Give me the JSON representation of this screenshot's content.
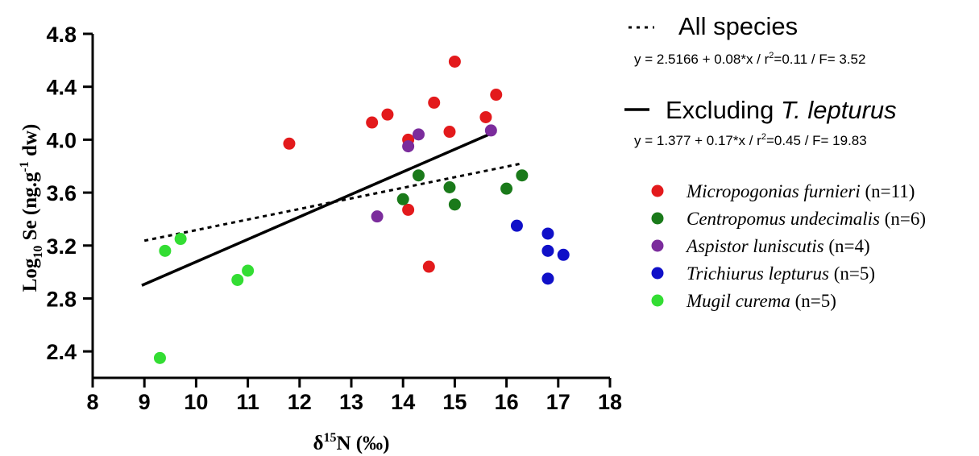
{
  "chart_data": {
    "type": "scatter",
    "xlabel": {
      "prefix": "δ",
      "sup": "15",
      "suffix": "N (‰)"
    },
    "ylabel": {
      "prefix": "Log",
      "sub": "10",
      "middle": " Se (ng.g",
      "sup": "-1",
      "suffix": " dw)"
    },
    "xlim": [
      8,
      18
    ],
    "ylim": [
      2.2,
      4.8
    ],
    "xticks": [
      8,
      9,
      10,
      11,
      12,
      13,
      14,
      15,
      16,
      17,
      18
    ],
    "yticks": [
      {
        "value": 2.4,
        "label": "2.4"
      },
      {
        "value": 2.8,
        "label": "2.8"
      },
      {
        "value": 3.2,
        "label": "3.2"
      },
      {
        "value": 3.6,
        "label": "3.6"
      },
      {
        "value": 4.0,
        "label": "4.0"
      },
      {
        "value": 4.4,
        "label": "4.4"
      },
      {
        "value": 4.8,
        "label": "4.8"
      }
    ],
    "series": [
      {
        "name": "Micropogonias furnieri",
        "n_label": " (n=11)",
        "color": "#e31a1c",
        "points": [
          [
            11.8,
            3.97
          ],
          [
            13.4,
            4.13
          ],
          [
            13.7,
            4.19
          ],
          [
            14.1,
            4.0
          ],
          [
            14.1,
            3.47
          ],
          [
            14.5,
            3.04
          ],
          [
            14.6,
            4.28
          ],
          [
            14.9,
            4.06
          ],
          [
            15.0,
            4.59
          ],
          [
            15.6,
            4.17
          ],
          [
            15.8,
            4.34
          ]
        ]
      },
      {
        "name": "Centropomus undecimalis",
        "n_label": " (n=6)",
        "color": "#1a7a1a",
        "points": [
          [
            14.0,
            3.55
          ],
          [
            14.3,
            3.73
          ],
          [
            14.9,
            3.64
          ],
          [
            15.0,
            3.51
          ],
          [
            16.0,
            3.63
          ],
          [
            16.3,
            3.73
          ]
        ]
      },
      {
        "name": "Aspistor luniscutis",
        "n_label": " (n=4)",
        "color": "#7b2c9c",
        "points": [
          [
            13.5,
            3.42
          ],
          [
            14.1,
            3.95
          ],
          [
            14.3,
            4.04
          ],
          [
            15.7,
            4.07
          ]
        ]
      },
      {
        "name": "Trichiurus lepturus",
        "n_label": " (n=5)",
        "color": "#1010c8",
        "points": [
          [
            16.2,
            3.35
          ],
          [
            16.8,
            3.29
          ],
          [
            16.8,
            3.16
          ],
          [
            16.8,
            2.95
          ],
          [
            17.1,
            3.13
          ]
        ]
      },
      {
        "name": "Mugil curema",
        "n_label": " (n=5)",
        "color": "#33dd33",
        "points": [
          [
            9.3,
            2.35
          ],
          [
            9.4,
            3.16
          ],
          [
            9.7,
            3.25
          ],
          [
            10.8,
            2.94
          ],
          [
            11.0,
            3.01
          ]
        ]
      }
    ],
    "fits": [
      {
        "name": "All species",
        "style": "dotted",
        "x_range": [
          9.0,
          16.3
        ],
        "intercept": 2.5166,
        "slope": 0.08,
        "equation": {
          "pre": "y = 2.5166 + 0.08*x / r",
          "sup": "2",
          "post": "=0.11 / F= 3.52"
        }
      },
      {
        "name": "Excluding",
        "name_italic": "T. lepturus",
        "style": "solid",
        "x_range": [
          8.95,
          15.8
        ],
        "intercept": 1.377,
        "slope": 0.17,
        "equation": {
          "pre": "y = 1.377 + 0.17*x / r",
          "sup": "2",
          "post": "=0.45 / F= 19.83"
        }
      }
    ],
    "legend_position": "right"
  }
}
